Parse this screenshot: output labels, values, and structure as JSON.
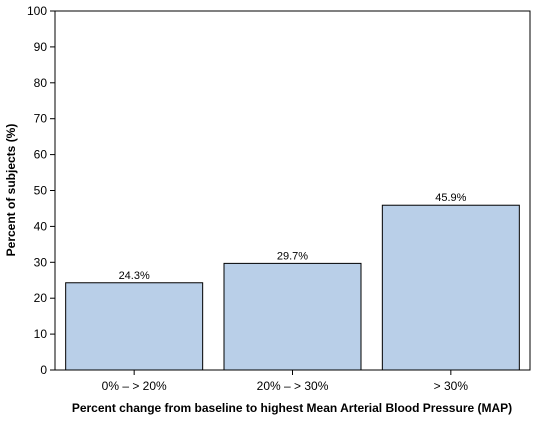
{
  "chart_data": {
    "type": "bar",
    "title": "",
    "xlabel": "Percent change from baseline to highest Mean Arterial Blood Pressure (MAP)",
    "ylabel": "Percent of subjects (%)",
    "categories": [
      "0% – > 20%",
      "20% – > 30%",
      "> 30%"
    ],
    "values": [
      24.3,
      29.7,
      45.9
    ],
    "data_labels": [
      "24.3%",
      "29.7%",
      "45.9%"
    ],
    "ylim": [
      0,
      100
    ],
    "yticks": [
      0,
      10,
      20,
      30,
      40,
      50,
      60,
      70,
      80,
      90,
      100
    ],
    "grid": false,
    "legend": "none",
    "colors": {
      "bar_fill": "#b9cfe8",
      "bar_stroke": "#000000",
      "axis": "#000000"
    }
  }
}
